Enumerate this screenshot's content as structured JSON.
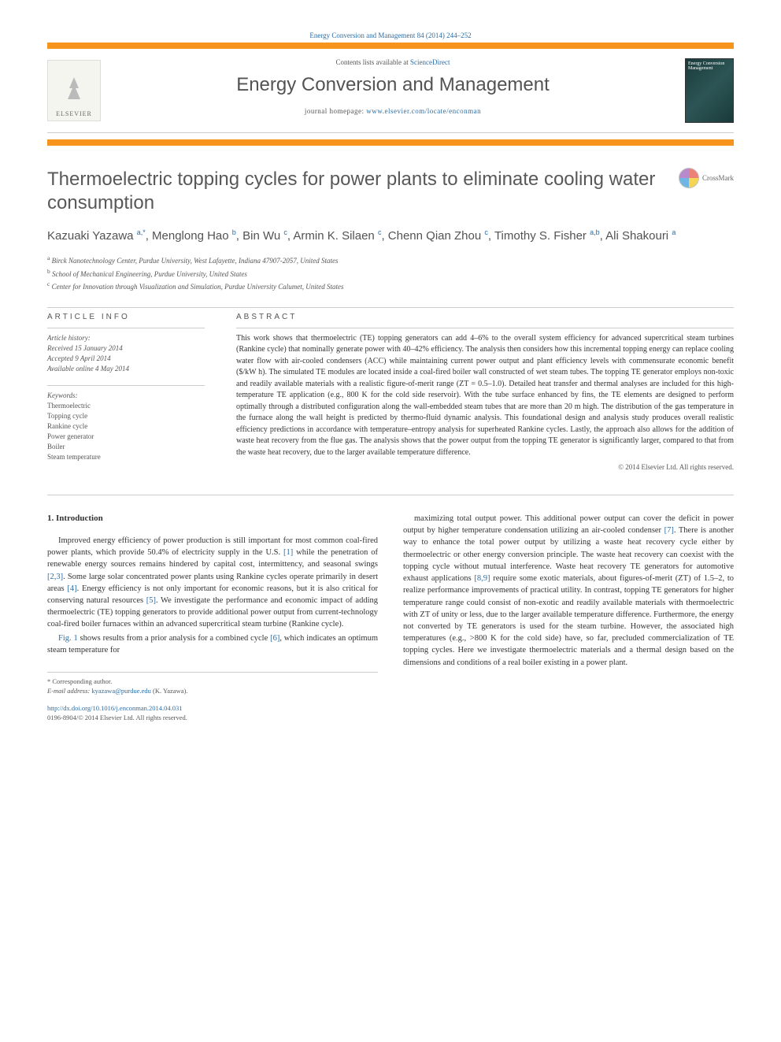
{
  "citation": "Energy Conversion and Management 84 (2014) 244–252",
  "contents_prefix": "Contents lists available at ",
  "contents_link": "ScienceDirect",
  "journal_name": "Energy Conversion and Management",
  "homepage_prefix": "journal homepage: ",
  "homepage_url": "www.elsevier.com/locate/enconman",
  "publisher_logo_text": "ELSEVIER",
  "cover_text": "Energy Conversion Management",
  "crossmark_label": "CrossMark",
  "title": "Thermoelectric topping cycles for power plants to eliminate cooling water consumption",
  "authors_html": "Kazuaki Yazawa <sup>a,*</sup>, Menglong Hao <sup>b</sup>, Bin Wu <sup>c</sup>, Armin K. Silaen <sup>c</sup>, Chenn Qian Zhou <sup>c</sup>, Timothy S. Fisher <sup>a,b</sup>, Ali Shakouri <sup>a</sup>",
  "affiliations": [
    {
      "sup": "a",
      "text": "Birck Nanotechnology Center, Purdue University, West Lafayette, Indiana 47907-2057, United States"
    },
    {
      "sup": "b",
      "text": "School of Mechanical Engineering, Purdue University, United States"
    },
    {
      "sup": "c",
      "text": "Center for Innovation through Visualization and Simulation, Purdue University Calumet, United States"
    }
  ],
  "info_label": "ARTICLE INFO",
  "abstract_label": "ABSTRACT",
  "history_label": "Article history:",
  "history": [
    "Received 15 January 2014",
    "Accepted 9 April 2014",
    "Available online 4 May 2014"
  ],
  "keywords_label": "Keywords:",
  "keywords": [
    "Thermoelectric",
    "Topping cycle",
    "Rankine cycle",
    "Power generator",
    "Boiler",
    "Steam temperature"
  ],
  "abstract": "This work shows that thermoelectric (TE) topping generators can add 4–6% to the overall system efficiency for advanced supercritical steam turbines (Rankine cycle) that nominally generate power with 40–42% efficiency. The analysis then considers how this incremental topping energy can replace cooling water flow with air-cooled condensers (ACC) while maintaining current power output and plant efficiency levels with commensurate economic benefit ($/kW h). The simulated TE modules are located inside a coal-fired boiler wall constructed of wet steam tubes. The topping TE generator employs non-toxic and readily available materials with a realistic figure-of-merit range (ZT = 0.5–1.0). Detailed heat transfer and thermal analyses are included for this high-temperature TE application (e.g., 800 K for the cold side reservoir). With the tube surface enhanced by fins, the TE elements are designed to perform optimally through a distributed configuration along the wall-embedded steam tubes that are more than 20 m high. The distribution of the gas temperature in the furnace along the wall height is predicted by thermo-fluid dynamic analysis. This foundational design and analysis study produces overall realistic efficiency predictions in accordance with temperature–entropy analysis for superheated Rankine cycles. Lastly, the approach also allows for the addition of waste heat recovery from the flue gas. The analysis shows that the power output from the topping TE generator is significantly larger, compared to that from the waste heat recovery, due to the larger available temperature difference.",
  "copyright": "© 2014 Elsevier Ltd. All rights reserved.",
  "section_heading": "1. Introduction",
  "col1_p1": "Improved energy efficiency of power production is still important for most common coal-fired power plants, which provide 50.4% of electricity supply in the U.S. [1] while the penetration of renewable energy sources remains hindered by capital cost, intermittency, and seasonal swings [2,3]. Some large solar concentrated power plants using Rankine cycles operate primarily in desert areas [4]. Energy efficiency is not only important for economic reasons, but it is also critical for conserving natural resources [5]. We investigate the performance and economic impact of adding thermoelectric (TE) topping generators to provide additional power output from current-technology coal-fired boiler furnaces within an advanced supercritical steam turbine (Rankine cycle).",
  "col1_p2": "Fig. 1 shows results from a prior analysis for a combined cycle [6], which indicates an optimum steam temperature for",
  "col2_p1": "maximizing total output power. This additional power output can cover the deficit in power output by higher temperature condensation utilizing an air-cooled condenser [7]. There is another way to enhance the total power output by utilizing a waste heat recovery cycle either by thermoelectric or other energy conversion principle. The waste heat recovery can coexist with the topping cycle without mutual interference. Waste heat recovery TE generators for automotive exhaust applications [8,9] require some exotic materials, about figures-of-merit (ZT) of 1.5–2, to realize performance improvements of practical utility. In contrast, topping TE generators for higher temperature range could consist of non-exotic and readily available materials with thermoelectric with ZT of unity or less, due to the larger available temperature difference. Furthermore, the energy not converted by TE generators is used for the steam turbine. However, the associated high temperatures (e.g., >800 K for the cold side) have, so far, precluded commercialization of TE topping cycles. Here we investigate thermoelectric materials and a thermal design based on the dimensions and conditions of a real boiler existing in a power plant.",
  "corr_label": "* Corresponding author.",
  "email_label": "E-mail address:",
  "email": "kyazawa@purdue.edu",
  "email_who": "(K. Yazawa).",
  "doi": "http://dx.doi.org/10.1016/j.enconman.2014.04.031",
  "issn_line": "0196-8904/© 2014 Elsevier Ltd. All rights reserved.",
  "refs": {
    "r1": "[1]",
    "r23": "[2,3]",
    "r4": "[4]",
    "r5": "[5]",
    "fig1": "Fig. 1",
    "r6": "[6]",
    "r7": "[7]",
    "r89": "[8,9]"
  },
  "colors": {
    "accent": "#f7941e",
    "link": "#2e6da4",
    "text": "#333333",
    "muted": "#555555"
  }
}
